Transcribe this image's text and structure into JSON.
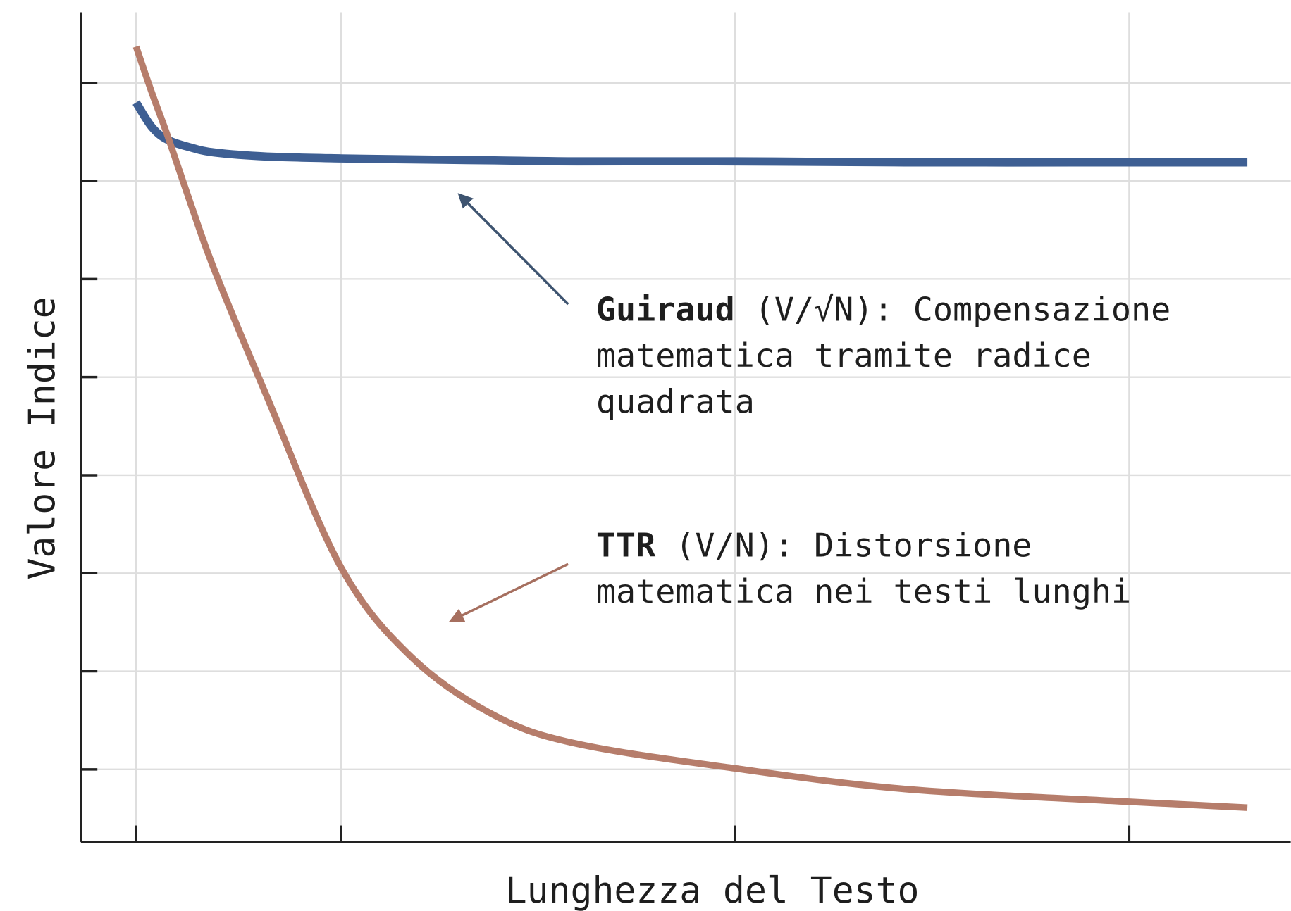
{
  "chart_data": {
    "type": "line",
    "x_label": "Lunghezza del Testo",
    "y_label": "Valore Indice",
    "xlim": [
      0.34,
      3.41
    ],
    "ylim": [
      0.26,
      8.72
    ],
    "xticks": [
      0.48,
      1,
      2,
      3
    ],
    "yticks": [
      1,
      2,
      3,
      4,
      5,
      6,
      7,
      8
    ],
    "grid": true,
    "x": [
      0.48,
      0.52,
      0.56,
      0.62,
      0.68,
      0.81,
      1,
      1.18,
      1.39,
      1.6,
      2,
      2.43,
      3,
      3.3
    ],
    "series": [
      {
        "color": "#3e5f93",
        "values": [
          7.8,
          7.55,
          7.42,
          7.34,
          7.29,
          7.25,
          7.23,
          7.22,
          7.21,
          7.2,
          7.2,
          7.19,
          7.19,
          7.19
        ]
      },
      {
        "color": "#b67d6b",
        "values": [
          8.37,
          7.9,
          7.46,
          6.75,
          6.08,
          4.82,
          3.06,
          2.14,
          1.55,
          1.26,
          1.01,
          0.8,
          0.67,
          0.61
        ]
      }
    ],
    "annotations": [
      {
        "label": "Guiraud",
        "lines": [
          "(V/√N): Compensazione",
          "matematica tramite radice",
          "quadrata"
        ]
      },
      {
        "label": "TTR",
        "lines": [
          "(V/N): Distorsione",
          "matematica nei testi lunghi"
        ]
      }
    ]
  }
}
